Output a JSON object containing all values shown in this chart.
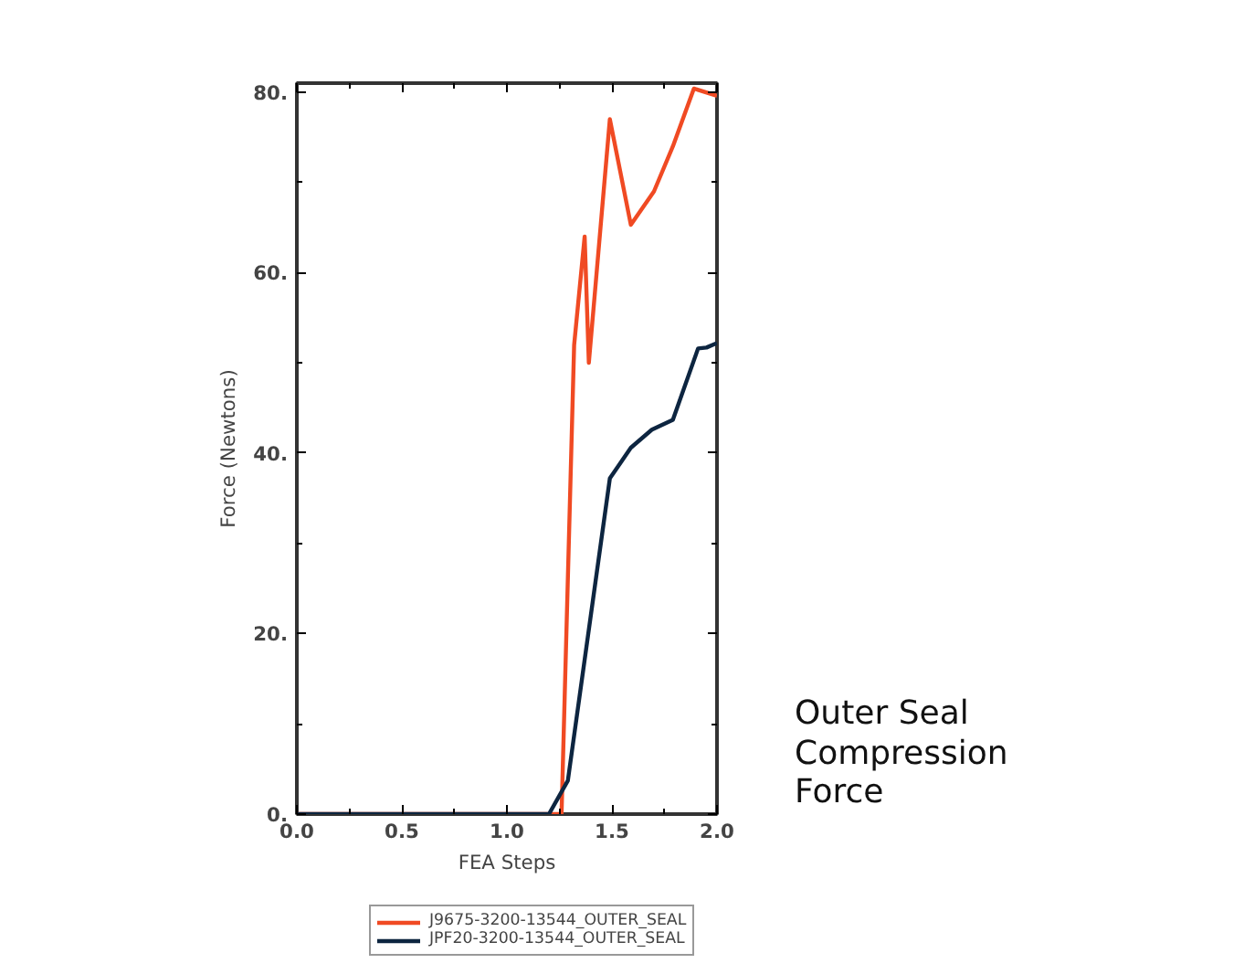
{
  "chart_data": {
    "type": "line",
    "xlabel": "FEA Steps",
    "ylabel": "Force (Newtons)",
    "xlim": [
      0,
      2
    ],
    "ylim": [
      0,
      81
    ],
    "xticks": [
      {
        "value": 0,
        "label": "0.0"
      },
      {
        "value": 0.25,
        "label": null
      },
      {
        "value": 0.5,
        "label": "0.5"
      },
      {
        "value": 0.75,
        "label": null
      },
      {
        "value": 1,
        "label": "1.0"
      },
      {
        "value": 1.25,
        "label": null
      },
      {
        "value": 1.5,
        "label": "1.5"
      },
      {
        "value": 1.75,
        "label": null
      },
      {
        "value": 2,
        "label": "2.0"
      }
    ],
    "yticks": [
      {
        "value": 0,
        "label": "0."
      },
      {
        "value": 10,
        "label": null
      },
      {
        "value": 20,
        "label": "20."
      },
      {
        "value": 30,
        "label": null
      },
      {
        "value": 40,
        "label": "40."
      },
      {
        "value": 50,
        "label": null
      },
      {
        "value": 60,
        "label": "60."
      },
      {
        "value": 70,
        "label": null
      },
      {
        "value": 80,
        "label": "80."
      }
    ],
    "grid": false,
    "legend": "bottom",
    "marker": "none",
    "line_style": "solid",
    "series": [
      {
        "name": "J9675-3200-13544_OUTER_SEAL",
        "color": "#f04a23",
        "x": [
          0,
          1.26,
          1.32,
          1.37,
          1.39,
          1.49,
          1.59,
          1.7,
          1.79,
          1.89,
          2.0
        ],
        "values": [
          0,
          0,
          52,
          64,
          50,
          77,
          65.3,
          69,
          74,
          80.4,
          79.6
        ]
      },
      {
        "name": "JPF20-3200-13544_OUTER_SEAL",
        "color": "#0d2540",
        "x": [
          0,
          1.2,
          1.29,
          1.49,
          1.59,
          1.69,
          1.79,
          1.91,
          1.95,
          2.0
        ],
        "values": [
          0,
          0,
          3.7,
          37.2,
          40.6,
          42.6,
          43.7,
          51.6,
          51.7,
          52.2
        ]
      }
    ],
    "annotations": [
      "Outer Seal Compression Force"
    ]
  }
}
